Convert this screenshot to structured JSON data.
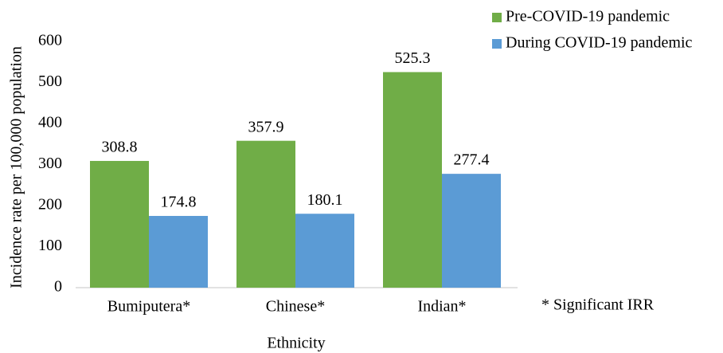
{
  "chart_data": {
    "type": "bar",
    "x_label": "Ethnicity",
    "y_label": "Incidence rate per 100,000 population",
    "categories": [
      "Bumiputera*",
      "Chinese*",
      "Indian*"
    ],
    "series": [
      {
        "name": "Pre-COVID-19 pandemic",
        "color": "#70ad47",
        "values": [
          308.8,
          357.9,
          525.3
        ]
      },
      {
        "name": "During COVID-19 pandemic",
        "color": "#5b9bd5",
        "values": [
          174.8,
          180.1,
          277.4
        ]
      }
    ],
    "ylim": [
      0,
      600
    ],
    "yticks": [
      0,
      100,
      200,
      300,
      400,
      500,
      600
    ],
    "grid": false,
    "legend": "top-right",
    "annotation": "* Significant IRR"
  }
}
